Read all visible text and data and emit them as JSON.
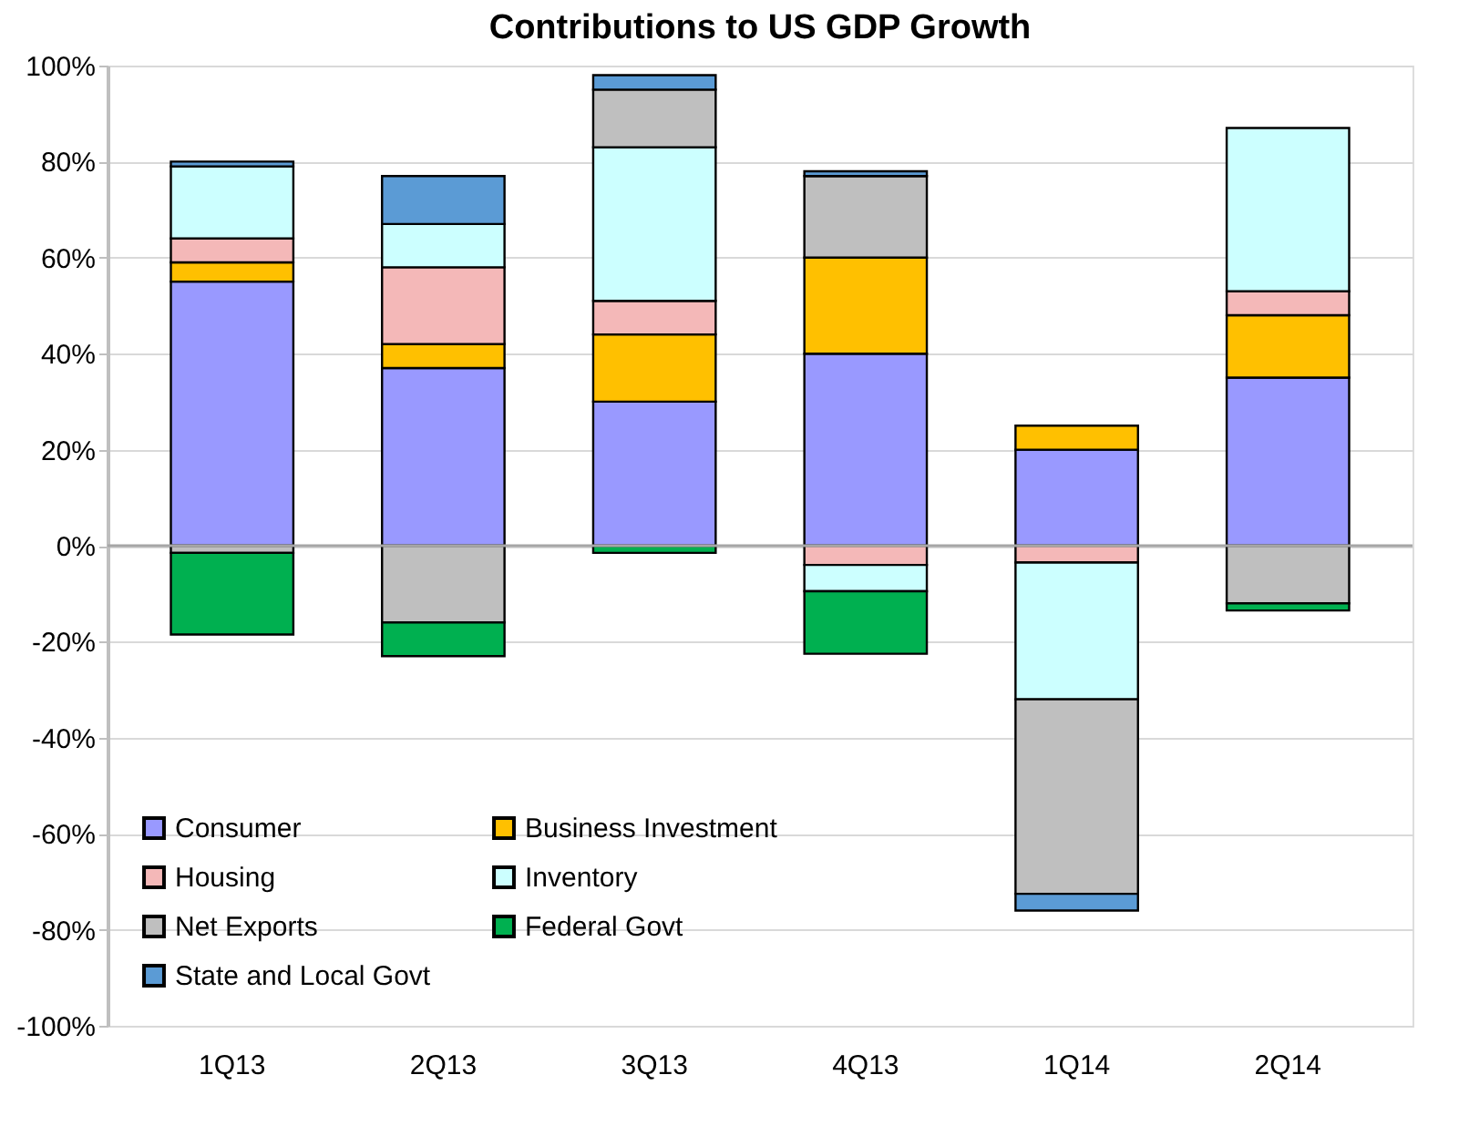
{
  "chart_data": {
    "type": "bar",
    "stacked": true,
    "title": "Contributions to US GDP Growth",
    "categories": [
      "1Q13",
      "2Q13",
      "3Q13",
      "4Q13",
      "1Q14",
      "2Q14"
    ],
    "series": [
      {
        "name": "Consumer",
        "color": "#9999ff",
        "values": [
          55,
          37,
          30,
          40,
          20,
          35
        ]
      },
      {
        "name": "Business Investment",
        "color": "#ffc000",
        "values": [
          4,
          5,
          14,
          20,
          5,
          13
        ]
      },
      {
        "name": "Housing",
        "color": "#f4b8b8",
        "values": [
          5,
          16,
          7,
          -4,
          -3.5,
          5
        ]
      },
      {
        "name": "Inventory",
        "color": "#ccffff",
        "values": [
          15,
          9,
          32,
          -5.5,
          -28.5,
          34
        ]
      },
      {
        "name": "Net Exports",
        "color": "#bfbfbf",
        "values": [
          -1.5,
          -16,
          12,
          17,
          -40.5,
          -12
        ]
      },
      {
        "name": "Federal Govt",
        "color": "#00b050",
        "values": [
          -17,
          -7,
          -1.5,
          -13,
          null,
          -1.5
        ]
      },
      {
        "name": "State and Local Govt",
        "color": "#5b9bd5",
        "values": [
          1,
          10,
          3,
          1,
          -3.5,
          null
        ]
      }
    ],
    "ylim": [
      -100,
      100
    ],
    "yticks": [
      {
        "value": -100,
        "label": "-100%"
      },
      {
        "value": -80,
        "label": "-80%"
      },
      {
        "value": -60,
        "label": "-60%"
      },
      {
        "value": -40,
        "label": "-40%"
      },
      {
        "value": -20,
        "label": "-20%"
      },
      {
        "value": 0,
        "label": "0%"
      },
      {
        "value": 20,
        "label": "20%"
      },
      {
        "value": 40,
        "label": "40%"
      },
      {
        "value": 60,
        "label": "60%"
      },
      {
        "value": 80,
        "label": "80%"
      },
      {
        "value": 100,
        "label": "100%"
      }
    ],
    "grid": "y",
    "legend": "bottom left"
  }
}
